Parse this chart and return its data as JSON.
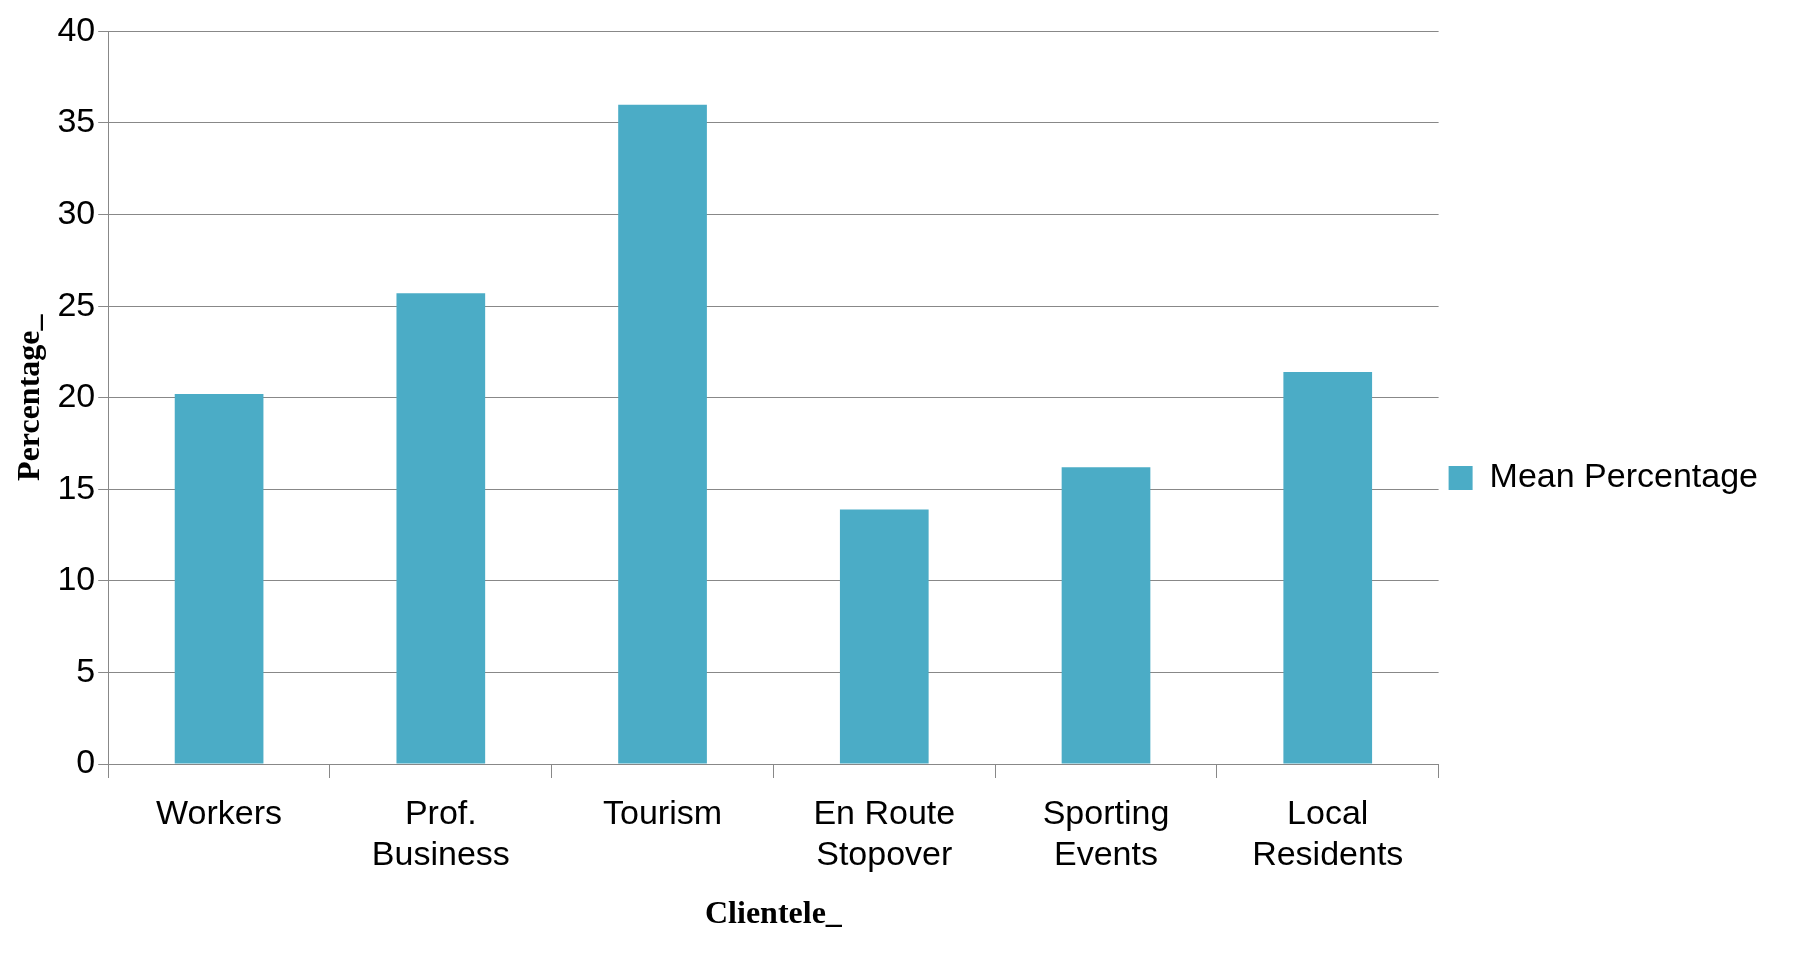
{
  "chart_data": {
    "type": "bar",
    "xlabel": "Clientele_",
    "ylabel": "Percentage_",
    "categories": [
      "Workers",
      "Prof.\nBusiness",
      "Tourism",
      "En Route\nStopover",
      "Sporting\nEvents",
      "Local\nResidents"
    ],
    "series": [
      {
        "name": "Mean Percentage",
        "color": "#4bacc6",
        "values": [
          20.2,
          25.7,
          36.0,
          13.9,
          16.2,
          21.4
        ]
      }
    ],
    "ylim": [
      0,
      40
    ],
    "yticks": [
      0,
      5,
      10,
      15,
      20,
      25,
      30,
      35,
      40
    ],
    "grid": "y",
    "legend": "right"
  }
}
